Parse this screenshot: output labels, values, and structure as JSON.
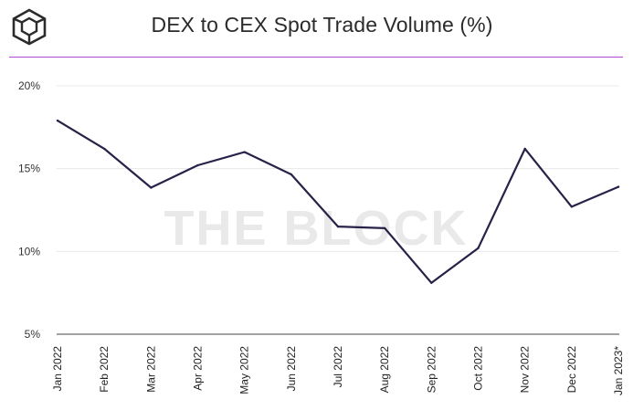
{
  "chart_data": {
    "type": "line",
    "title": "DEX to CEX Spot Trade Volume (%)",
    "watermark": "THE BLOCK",
    "xlabel": "",
    "ylabel": "",
    "ylim": [
      5,
      20
    ],
    "yticks": [
      5,
      10,
      15,
      20
    ],
    "ytick_labels": [
      "5%",
      "10%",
      "15%",
      "20%"
    ],
    "grid": true,
    "categories": [
      "Jan 2022",
      "Feb 2022",
      "Mar 2022",
      "Apr 2022",
      "May 2022",
      "Jun 2022",
      "Jul 2022",
      "Aug 2022",
      "Sep 2022",
      "Oct 2022",
      "Nov 2022",
      "Dec 2022",
      "Jan 2023*"
    ],
    "series": [
      {
        "name": "DEX to CEX Spot Trade Volume",
        "color": "#2a2148",
        "values": [
          17.9,
          16.2,
          13.85,
          15.2,
          16.0,
          14.65,
          11.5,
          11.4,
          8.1,
          10.2,
          16.2,
          12.7,
          13.9
        ]
      }
    ]
  }
}
